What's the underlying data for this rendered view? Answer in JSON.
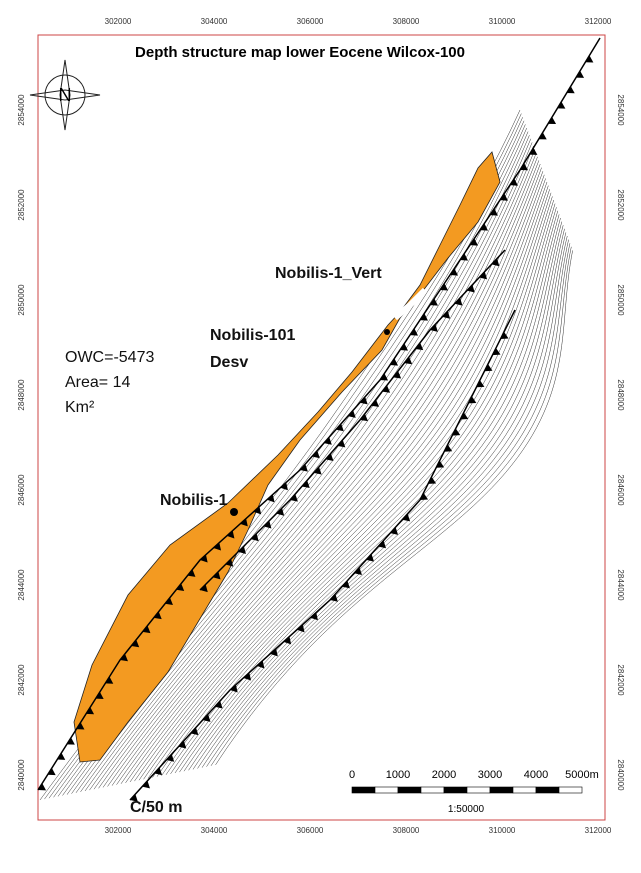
{
  "title": "Depth structure  map lower Eocene Wilcox-100",
  "axes": {
    "top": [
      "302000",
      "304000",
      "306000",
      "308000",
      "310000",
      "312000"
    ],
    "bottom": [
      "302000",
      "304000",
      "306000",
      "308000",
      "310000",
      "312000"
    ],
    "left": [
      "2854000",
      "2852000",
      "2850000",
      "2848000",
      "2846000",
      "2844000",
      "2842000",
      "2840000"
    ],
    "right": [
      "2854000",
      "2852000",
      "2850000",
      "2848000",
      "2846000",
      "2844000",
      "2842000",
      "2840000"
    ]
  },
  "north": "N",
  "wells": {
    "vert": "Nobilis-1_Vert",
    "desv_name": "Nobilis-101",
    "desv_note": "Desv",
    "main": "Nobilis-1"
  },
  "info": {
    "owc": "OWC=-5473",
    "area": "Area= 14",
    "unit": "Km²"
  },
  "contour_interval": "C/50 m",
  "scale": {
    "ticks": [
      "0",
      "1000",
      "2000",
      "3000",
      "4000",
      "5000m"
    ],
    "ratio": "1:50000"
  }
}
